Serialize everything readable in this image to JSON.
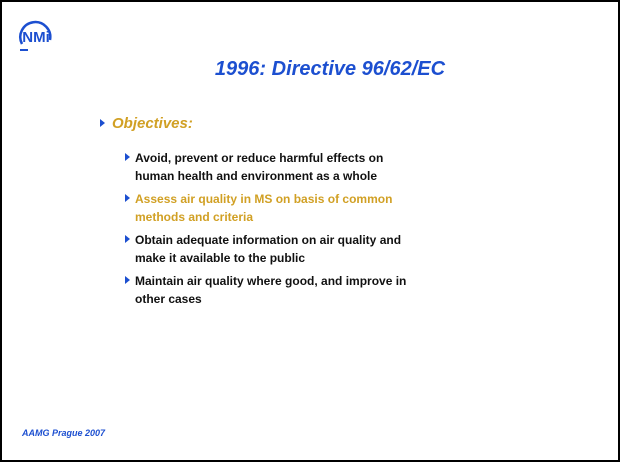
{
  "logo": "NMi",
  "title": "1996: Directive 96/62/EC",
  "heading": "Objectives:",
  "items": [
    {
      "lines": [
        "Avoid, prevent or reduce harmful effects on",
        "human health and environment as a whole"
      ],
      "highlight": false
    },
    {
      "lines": [
        "Assess air quality in MS on basis of common",
        "methods and criteria"
      ],
      "highlight": true
    },
    {
      "lines": [
        "Obtain adequate information on air quality and",
        "make it available to the public"
      ],
      "highlight": false
    },
    {
      "lines": [
        "Maintain air quality where good, and improve in",
        "other cases"
      ],
      "highlight": false
    }
  ],
  "footer": "AAMG Prague 2007"
}
